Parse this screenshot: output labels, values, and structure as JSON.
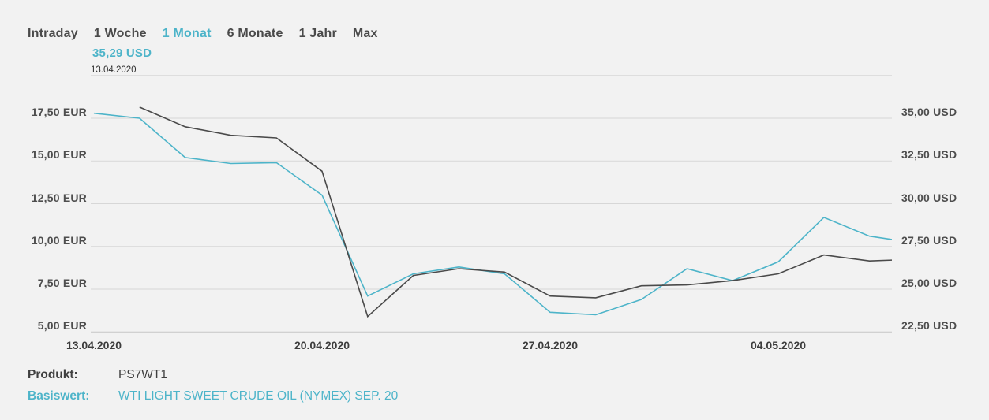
{
  "colors": {
    "accent": "#4db4c9",
    "dark_line": "#4a4a4a",
    "background": "#f2f2f2",
    "grid": "#d7d7d7"
  },
  "tabs": {
    "items": [
      {
        "label": "Intraday",
        "active": false
      },
      {
        "label": "1 Woche",
        "active": false
      },
      {
        "label": "1 Monat",
        "active": true
      },
      {
        "label": "6 Monate",
        "active": false
      },
      {
        "label": "1 Jahr",
        "active": false
      },
      {
        "label": "Max",
        "active": false
      }
    ]
  },
  "hover": {
    "value": "35,29 USD",
    "date": "13.04.2020"
  },
  "chart_data": {
    "type": "line",
    "x_dates": [
      "13.04.2020",
      "14.04.2020",
      "15.04.2020",
      "16.04.2020",
      "17.04.2020",
      "20.04.2020",
      "21.04.2020",
      "22.04.2020",
      "23.04.2020",
      "24.04.2020",
      "27.04.2020",
      "28.04.2020",
      "29.04.2020",
      "30.04.2020",
      "01.05.2020",
      "04.05.2020",
      "05.05.2020",
      "06.05.2020",
      "07.05.2020"
    ],
    "x_labels": [
      "13.04.2020",
      "20.04.2020",
      "27.04.2020",
      "04.05.2020"
    ],
    "series": [
      {
        "name": "Basiswert (USD)",
        "axis": "right",
        "color": "#4db4c9",
        "values": [
          35.29,
          35.0,
          32.7,
          32.35,
          32.4,
          30.5,
          24.6,
          25.9,
          26.3,
          25.9,
          23.65,
          23.5,
          24.4,
          26.2,
          25.5,
          26.6,
          29.2,
          28.1,
          27.7
        ]
      },
      {
        "name": "Produkt (EUR)",
        "axis": "left",
        "color": "#4a4a4a",
        "values": [
          null,
          18.15,
          17.0,
          16.5,
          16.35,
          14.4,
          5.9,
          8.3,
          8.7,
          8.5,
          7.1,
          7.0,
          7.7,
          7.75,
          8.0,
          8.4,
          9.5,
          9.15,
          9.25
        ]
      }
    ],
    "left_axis": {
      "unit": "EUR",
      "ticks": [
        "17,50 EUR",
        "15,00 EUR",
        "12,50 EUR",
        "10,00 EUR",
        "7,50 EUR",
        "5,00 EUR"
      ],
      "values": [
        17.5,
        15.0,
        12.5,
        10.0,
        7.5,
        5.0
      ],
      "range": [
        5.0,
        20.0
      ]
    },
    "right_axis": {
      "unit": "USD",
      "ticks": [
        "35,00 USD",
        "32,50 USD",
        "30,00 USD",
        "27,50 USD",
        "25,00 USD",
        "22,50 USD"
      ],
      "values": [
        35.0,
        32.5,
        30.0,
        27.5,
        25.0,
        22.5
      ],
      "range": [
        22.5,
        37.5
      ]
    },
    "grid": true,
    "legend": "none"
  },
  "product": {
    "rows": [
      {
        "label": "Produkt:",
        "value": "PS7WT1"
      },
      {
        "label": "Basiswert:",
        "value": "WTI LIGHT SWEET CRUDE OIL (NYMEX) SEP. 20"
      }
    ]
  }
}
